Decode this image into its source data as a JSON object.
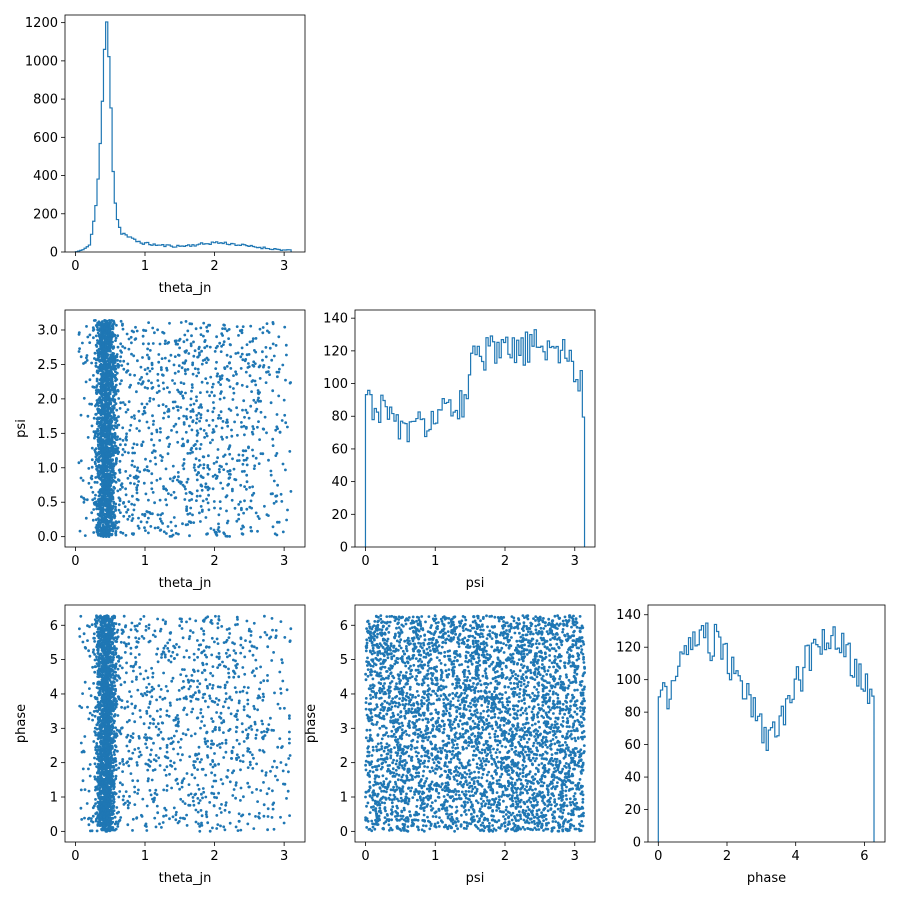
{
  "chart_data": [
    {
      "type": "histogram",
      "panel": "theta_jn",
      "xlabel": "theta_jn",
      "ylabel": "",
      "xlim": [
        -0.15,
        3.3
      ],
      "ylim": [
        0,
        1240
      ],
      "xticks": [
        0,
        1,
        2,
        3
      ],
      "yticks": [
        0,
        200,
        400,
        600,
        800,
        1000,
        1200
      ],
      "profile": [
        [
          0.0,
          0
        ],
        [
          0.05,
          5
        ],
        [
          0.1,
          10
        ],
        [
          0.15,
          18
        ],
        [
          0.2,
          40
        ],
        [
          0.25,
          120
        ],
        [
          0.3,
          260
        ],
        [
          0.35,
          500
        ],
        [
          0.38,
          730
        ],
        [
          0.4,
          900
        ],
        [
          0.42,
          1060
        ],
        [
          0.44,
          1190
        ],
        [
          0.46,
          1190
        ],
        [
          0.48,
          1050
        ],
        [
          0.5,
          900
        ],
        [
          0.52,
          680
        ],
        [
          0.54,
          450
        ],
        [
          0.56,
          300
        ],
        [
          0.6,
          180
        ],
        [
          0.65,
          105
        ],
        [
          0.7,
          95
        ],
        [
          0.8,
          70
        ],
        [
          0.9,
          55
        ],
        [
          1.0,
          45
        ],
        [
          1.2,
          35
        ],
        [
          1.5,
          30
        ],
        [
          1.8,
          40
        ],
        [
          2.0,
          50
        ],
        [
          2.2,
          45
        ],
        [
          2.5,
          30
        ],
        [
          2.8,
          18
        ],
        [
          3.0,
          10
        ],
        [
          3.1,
          8
        ]
      ]
    },
    {
      "type": "scatter",
      "panel": "theta_jn vs psi",
      "xlabel": "theta_jn",
      "ylabel": "psi",
      "xlim": [
        -0.15,
        3.3
      ],
      "ylim": [
        -0.15,
        3.29
      ],
      "xticks": [
        0,
        1,
        2,
        3
      ],
      "yticks": [
        0.0,
        0.5,
        1.0,
        1.5,
        2.0,
        2.5,
        3.0
      ],
      "ytick_labels": [
        "0.0",
        "0.5",
        "1.0",
        "1.5",
        "2.0",
        "2.5",
        "3.0"
      ]
    },
    {
      "type": "histogram",
      "panel": "psi",
      "xlabel": "psi",
      "ylabel": "",
      "xlim": [
        -0.15,
        3.29
      ],
      "ylim": [
        0,
        145
      ],
      "xticks": [
        0,
        1,
        2,
        3
      ],
      "yticks": [
        0,
        20,
        40,
        60,
        80,
        100,
        120,
        140
      ],
      "profile": [
        [
          0.0,
          90
        ],
        [
          0.2,
          85
        ],
        [
          0.4,
          80
        ],
        [
          0.6,
          68
        ],
        [
          0.8,
          75
        ],
        [
          1.0,
          80
        ],
        [
          1.2,
          82
        ],
        [
          1.4,
          90
        ],
        [
          1.5,
          108
        ],
        [
          1.6,
          115
        ],
        [
          1.8,
          118
        ],
        [
          2.0,
          118
        ],
        [
          2.2,
          120
        ],
        [
          2.4,
          122
        ],
        [
          2.6,
          124
        ],
        [
          2.8,
          120
        ],
        [
          3.0,
          110
        ],
        [
          3.1,
          98
        ],
        [
          3.14,
          72
        ]
      ]
    },
    {
      "type": "scatter",
      "panel": "theta_jn vs phase",
      "xlabel": "theta_jn",
      "ylabel": "phase",
      "xlim": [
        -0.15,
        3.3
      ],
      "ylim": [
        -0.31,
        6.59
      ],
      "xticks": [
        0,
        1,
        2,
        3
      ],
      "yticks": [
        0,
        1,
        2,
        3,
        4,
        5,
        6
      ]
    },
    {
      "type": "scatter",
      "panel": "psi vs phase",
      "xlabel": "psi",
      "ylabel": "phase",
      "xlim": [
        -0.15,
        3.29
      ],
      "ylim": [
        -0.31,
        6.59
      ],
      "xticks": [
        0,
        1,
        2,
        3
      ],
      "yticks": [
        0,
        1,
        2,
        3,
        4,
        5,
        6
      ]
    },
    {
      "type": "histogram",
      "panel": "phase",
      "xlabel": "phase",
      "ylabel": "",
      "xlim": [
        -0.3,
        6.6
      ],
      "ylim": [
        0,
        146
      ],
      "xticks": [
        0,
        2,
        4,
        6
      ],
      "yticks": [
        0,
        20,
        40,
        60,
        80,
        100,
        120,
        140
      ],
      "profile": [
        [
          0.0,
          88
        ],
        [
          0.3,
          92
        ],
        [
          0.6,
          108
        ],
        [
          0.9,
          120
        ],
        [
          1.2,
          122
        ],
        [
          1.5,
          124
        ],
        [
          1.8,
          122
        ],
        [
          2.1,
          108
        ],
        [
          2.4,
          100
        ],
        [
          2.7,
          88
        ],
        [
          3.0,
          72
        ],
        [
          3.2,
          62
        ],
        [
          3.4,
          66
        ],
        [
          3.7,
          80
        ],
        [
          4.0,
          96
        ],
        [
          4.3,
          110
        ],
        [
          4.6,
          120
        ],
        [
          4.9,
          126
        ],
        [
          5.2,
          124
        ],
        [
          5.5,
          116
        ],
        [
          5.8,
          104
        ],
        [
          6.1,
          96
        ],
        [
          6.28,
          94
        ]
      ]
    }
  ]
}
